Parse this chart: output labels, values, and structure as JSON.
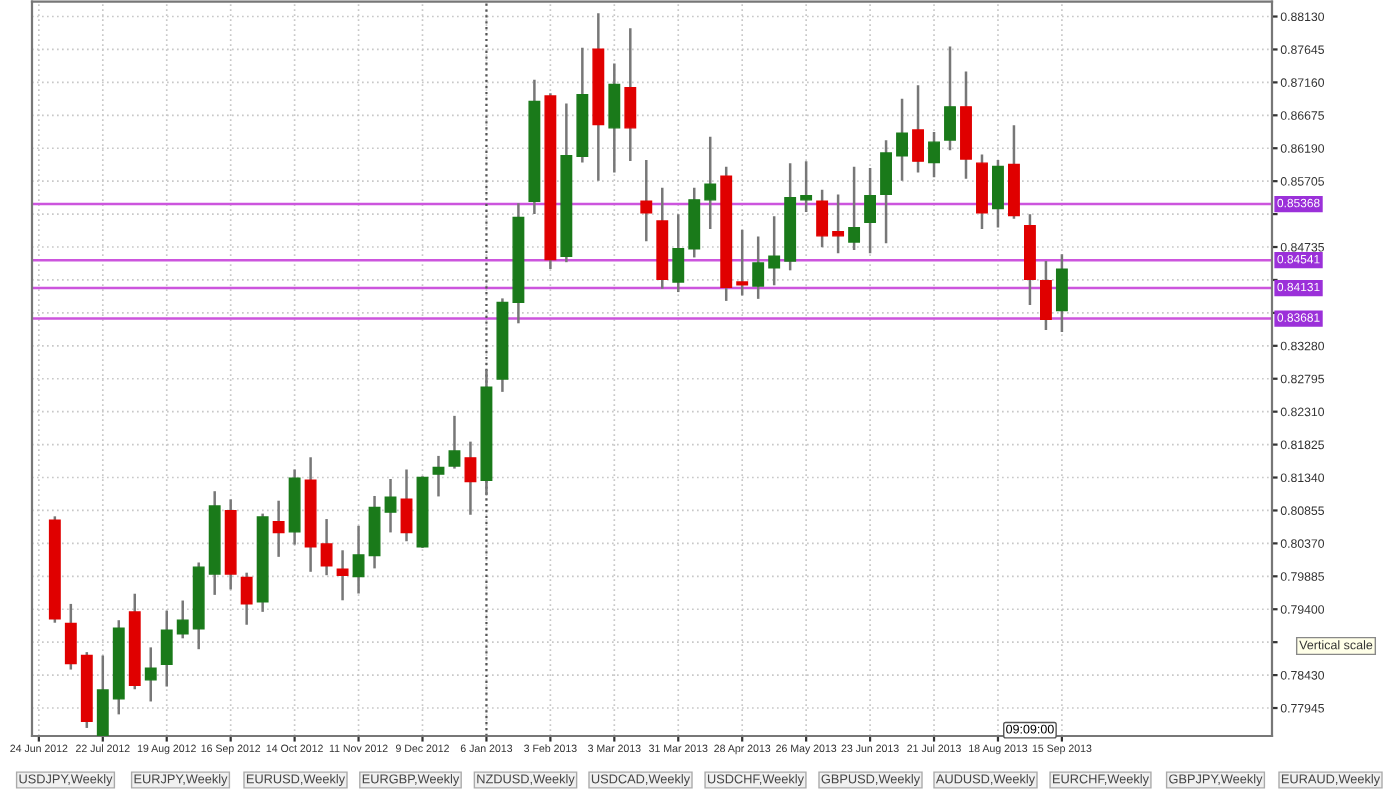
{
  "chart_data": {
    "type": "candlestick",
    "x": [
      "2012-07-01",
      "2012-07-08",
      "2012-07-15",
      "2012-07-22",
      "2012-07-29",
      "2012-08-05",
      "2012-08-12",
      "2012-08-19",
      "2012-08-26",
      "2012-09-02",
      "2012-09-09",
      "2012-09-16",
      "2012-09-23",
      "2012-09-30",
      "2012-10-07",
      "2012-10-14",
      "2012-10-21",
      "2012-10-28",
      "2012-11-04",
      "2012-11-11",
      "2012-11-18",
      "2012-11-25",
      "2012-12-02",
      "2012-12-09",
      "2012-12-16",
      "2012-12-23",
      "2012-12-30",
      "2013-01-06",
      "2013-01-13",
      "2013-01-20",
      "2013-01-27",
      "2013-02-03",
      "2013-02-10",
      "2013-02-17",
      "2013-02-24",
      "2013-03-03",
      "2013-03-10",
      "2013-03-17",
      "2013-03-24",
      "2013-03-31",
      "2013-04-07",
      "2013-04-14",
      "2013-04-21",
      "2013-04-28",
      "2013-05-05",
      "2013-05-12",
      "2013-05-19",
      "2013-05-26",
      "2013-06-02",
      "2013-06-09",
      "2013-06-16",
      "2013-06-23",
      "2013-06-30",
      "2013-07-07",
      "2013-07-14",
      "2013-07-21",
      "2013-07-28",
      "2013-08-04",
      "2013-08-11",
      "2013-08-18",
      "2013-08-25",
      "2013-09-01",
      "2013-09-08",
      "2013-09-15"
    ],
    "ohlc": [
      [
        0.8071,
        0.8075,
        0.7922,
        0.7926
      ],
      [
        0.7919,
        0.7946,
        0.7853,
        0.786
      ],
      [
        0.7872,
        0.7875,
        0.7767,
        0.7775
      ],
      [
        0.775,
        0.787,
        0.7747,
        0.7821
      ],
      [
        0.7808,
        0.7922,
        0.7787,
        0.7912
      ],
      [
        0.7936,
        0.7961,
        0.7824,
        0.7828
      ],
      [
        0.7836,
        0.7882,
        0.7806,
        0.7853
      ],
      [
        0.7859,
        0.7936,
        0.7828,
        0.7909
      ],
      [
        0.7904,
        0.7951,
        0.7899,
        0.7924
      ],
      [
        0.7911,
        0.8007,
        0.7883,
        0.8002
      ],
      [
        0.7992,
        0.8112,
        0.7963,
        0.8092
      ],
      [
        0.8085,
        0.81,
        0.7971,
        0.7992
      ],
      [
        0.7987,
        0.7992,
        0.7919,
        0.7948
      ],
      [
        0.7951,
        0.8079,
        0.7938,
        0.8076
      ],
      [
        0.8069,
        0.8098,
        0.8019,
        0.8053
      ],
      [
        0.8054,
        0.8144,
        0.8037,
        0.8133
      ],
      [
        0.813,
        0.8162,
        0.7997,
        0.8032
      ],
      [
        0.8036,
        0.8071,
        0.7992,
        0.8004
      ],
      [
        0.7999,
        0.8025,
        0.7955,
        0.799
      ],
      [
        0.7988,
        0.8061,
        0.7965,
        0.802
      ],
      [
        0.8019,
        0.8105,
        0.8002,
        0.809
      ],
      [
        0.8083,
        0.813,
        0.8055,
        0.8105
      ],
      [
        0.8102,
        0.8144,
        0.8042,
        0.8053
      ],
      [
        0.8032,
        0.8134,
        0.8032,
        0.8134
      ],
      [
        0.8139,
        0.8164,
        0.8108,
        0.8149
      ],
      [
        0.8151,
        0.8223,
        0.8149,
        0.8173
      ],
      [
        0.8163,
        0.8185,
        0.8081,
        0.8128
      ],
      [
        0.813,
        0.8291,
        0.811,
        0.8267
      ],
      [
        0.8279,
        0.8396,
        0.8262,
        0.8392
      ],
      [
        0.8392,
        0.8536,
        0.8363,
        0.8517
      ],
      [
        0.8541,
        0.8718,
        0.8524,
        0.8688
      ],
      [
        0.8696,
        0.8698,
        0.8443,
        0.8455
      ],
      [
        0.846,
        0.8683,
        0.8453,
        0.8608
      ],
      [
        0.8607,
        0.8765,
        0.86,
        0.8698
      ],
      [
        0.8765,
        0.8816,
        0.8573,
        0.8654
      ],
      [
        0.8649,
        0.8742,
        0.8585,
        0.8713
      ],
      [
        0.8708,
        0.8794,
        0.8602,
        0.8649
      ],
      [
        0.8541,
        0.86,
        0.8484,
        0.8524
      ],
      [
        0.8512,
        0.8559,
        0.8414,
        0.8426
      ],
      [
        0.8422,
        0.852,
        0.8409,
        0.8471
      ],
      [
        0.8471,
        0.8559,
        0.846,
        0.8543
      ],
      [
        0.8543,
        0.8634,
        0.8502,
        0.8566
      ],
      [
        0.8578,
        0.859,
        0.8396,
        0.8414
      ],
      [
        0.8422,
        0.8497,
        0.8404,
        0.8418
      ],
      [
        0.8416,
        0.8487,
        0.8399,
        0.845
      ],
      [
        0.8443,
        0.8517,
        0.8419,
        0.846
      ],
      [
        0.8453,
        0.8595,
        0.8441,
        0.8546
      ],
      [
        0.8543,
        0.8598,
        0.8527,
        0.8549
      ],
      [
        0.8541,
        0.8556,
        0.8475,
        0.849
      ],
      [
        0.8496,
        0.8549,
        0.8466,
        0.849
      ],
      [
        0.8481,
        0.859,
        0.8471,
        0.8502
      ],
      [
        0.851,
        0.8588,
        0.8466,
        0.8549
      ],
      [
        0.8551,
        0.8629,
        0.8481,
        0.8612
      ],
      [
        0.8608,
        0.869,
        0.8573,
        0.8641
      ],
      [
        0.8646,
        0.871,
        0.8585,
        0.86
      ],
      [
        0.8598,
        0.8641,
        0.8578,
        0.8628
      ],
      [
        0.8631,
        0.8767,
        0.8618,
        0.868
      ],
      [
        0.868,
        0.873,
        0.8576,
        0.8603
      ],
      [
        0.8597,
        0.8608,
        0.8502,
        0.8524
      ],
      [
        0.853,
        0.86,
        0.8504,
        0.8592
      ],
      [
        0.8595,
        0.8651,
        0.8517,
        0.852
      ],
      [
        0.8505,
        0.852,
        0.839,
        0.8426
      ],
      [
        0.8424,
        0.8451,
        0.8353,
        0.8367
      ],
      [
        0.838,
        0.8461,
        0.835,
        0.8441
      ]
    ],
    "colors": [
      "#e00000",
      "#e00000",
      "#e00000",
      "#1a7a1a",
      "#1a7a1a",
      "#e00000",
      "#1a7a1a",
      "#1a7a1a",
      "#1a7a1a",
      "#1a7a1a",
      "#1a7a1a",
      "#e00000",
      "#e00000",
      "#1a7a1a",
      "#e00000",
      "#1a7a1a",
      "#e00000",
      "#e00000",
      "#e00000",
      "#1a7a1a",
      "#1a7a1a",
      "#1a7a1a",
      "#e00000",
      "#1a7a1a",
      "#1a7a1a",
      "#1a7a1a",
      "#e00000",
      "#1a7a1a",
      "#1a7a1a",
      "#1a7a1a",
      "#1a7a1a",
      "#e00000",
      "#1a7a1a",
      "#1a7a1a",
      "#e00000",
      "#1a7a1a",
      "#e00000",
      "#e00000",
      "#e00000",
      "#1a7a1a",
      "#1a7a1a",
      "#1a7a1a",
      "#e00000",
      "#e00000",
      "#1a7a1a",
      "#1a7a1a",
      "#1a7a1a",
      "#1a7a1a",
      "#e00000",
      "#e00000",
      "#1a7a1a",
      "#1a7a1a",
      "#1a7a1a",
      "#1a7a1a",
      "#e00000",
      "#1a7a1a",
      "#1a7a1a",
      "#e00000",
      "#e00000",
      "#1a7a1a",
      "#e00000",
      "#e00000",
      "#e00000",
      "#1a7a1a"
    ],
    "xlim": [
      "2012-06-21",
      "2013-12-16"
    ],
    "xticks": [
      {
        "value": "2012-06-24",
        "label": "24 Jun 2012"
      },
      {
        "value": "2012-07-22",
        "label": "22 Jul 2012"
      },
      {
        "value": "2012-08-19",
        "label": "19 Aug 2012"
      },
      {
        "value": "2012-09-16",
        "label": "16 Sep 2012"
      },
      {
        "value": "2012-10-14",
        "label": "14 Oct 2012"
      },
      {
        "value": "2012-11-11",
        "label": "11 Nov 2012"
      },
      {
        "value": "2012-12-09",
        "label": "9 Dec 2012"
      },
      {
        "value": "2013-01-06",
        "label": "6 Jan 2013"
      },
      {
        "value": "2013-02-03",
        "label": "3 Feb 2013"
      },
      {
        "value": "2013-03-03",
        "label": "3 Mar 2013"
      },
      {
        "value": "2013-03-31",
        "label": "31 Mar 2013"
      },
      {
        "value": "2013-04-28",
        "label": "28 Apr 2013"
      },
      {
        "value": "2013-05-26",
        "label": "26 May 2013"
      },
      {
        "value": "2013-06-23",
        "label": "23 Jun 2013"
      },
      {
        "value": "2013-07-21",
        "label": "21 Jul 2013"
      },
      {
        "value": "2013-08-18",
        "label": "18 Aug 2013"
      },
      {
        "value": "2013-09-15",
        "label": "15 Sep 2013"
      }
    ],
    "ylim": [
      0.77533,
      0.8835
    ],
    "yticks": [
      {
        "value": 0.77945,
        "label": "0.77945"
      },
      {
        "value": 0.7843,
        "label": "0.78430"
      },
      {
        "value": 0.78915,
        "label": null
      },
      {
        "value": 0.794,
        "label": "0.79400"
      },
      {
        "value": 0.79885,
        "label": "0.79885"
      },
      {
        "value": 0.8037,
        "label": "0.80370"
      },
      {
        "value": 0.80855,
        "label": "0.80855"
      },
      {
        "value": 0.8134,
        "label": "0.81340"
      },
      {
        "value": 0.81825,
        "label": "0.81825"
      },
      {
        "value": 0.8231,
        "label": "0.82310"
      },
      {
        "value": 0.82795,
        "label": "0.82795"
      },
      {
        "value": 0.8328,
        "label": "0.83280"
      },
      {
        "value": 0.83765,
        "label": null
      },
      {
        "value": 0.8425,
        "label": null
      },
      {
        "value": 0.84735,
        "label": "0.84735"
      },
      {
        "value": 0.8522,
        "label": null
      },
      {
        "value": 0.85705,
        "label": "0.85705"
      },
      {
        "value": 0.8619,
        "label": "0.86190"
      },
      {
        "value": 0.86675,
        "label": "0.86675"
      },
      {
        "value": 0.8716,
        "label": "0.87160"
      },
      {
        "value": 0.87645,
        "label": "0.87645"
      },
      {
        "value": 0.8813,
        "label": "0.88130"
      }
    ],
    "ref_lines": [
      {
        "axis": "y",
        "value": 0.85368,
        "label": "0.85368",
        "color": "#cc55dd"
      },
      {
        "axis": "y",
        "value": 0.84541,
        "label": "0.84541",
        "color": "#cc55dd"
      },
      {
        "axis": "y",
        "value": 0.84131,
        "label": "0.84131",
        "color": "#cc55dd"
      },
      {
        "axis": "y",
        "value": 0.83681,
        "label": "0.83681",
        "color": "#cc55dd"
      },
      {
        "axis": "x",
        "value": "2013-01-06",
        "color": "#555555",
        "line_style": "dotted"
      }
    ],
    "grid": true,
    "annotations": [
      "09:09:00",
      "Vertical scale",
      "USDJPY,Weekly",
      "EURJPY,Weekly",
      "EURUSD,Weekly",
      "EURGBP,Weekly",
      "NZDUSD,Weekly",
      "USDCAD,Weekly",
      "USDCHF,Weekly",
      "GBPUSD,Weekly",
      "AUDUSD,Weekly",
      "EURCHF,Weekly",
      "GBPJPY,Weekly",
      "EURAUD,Weekly"
    ]
  }
}
